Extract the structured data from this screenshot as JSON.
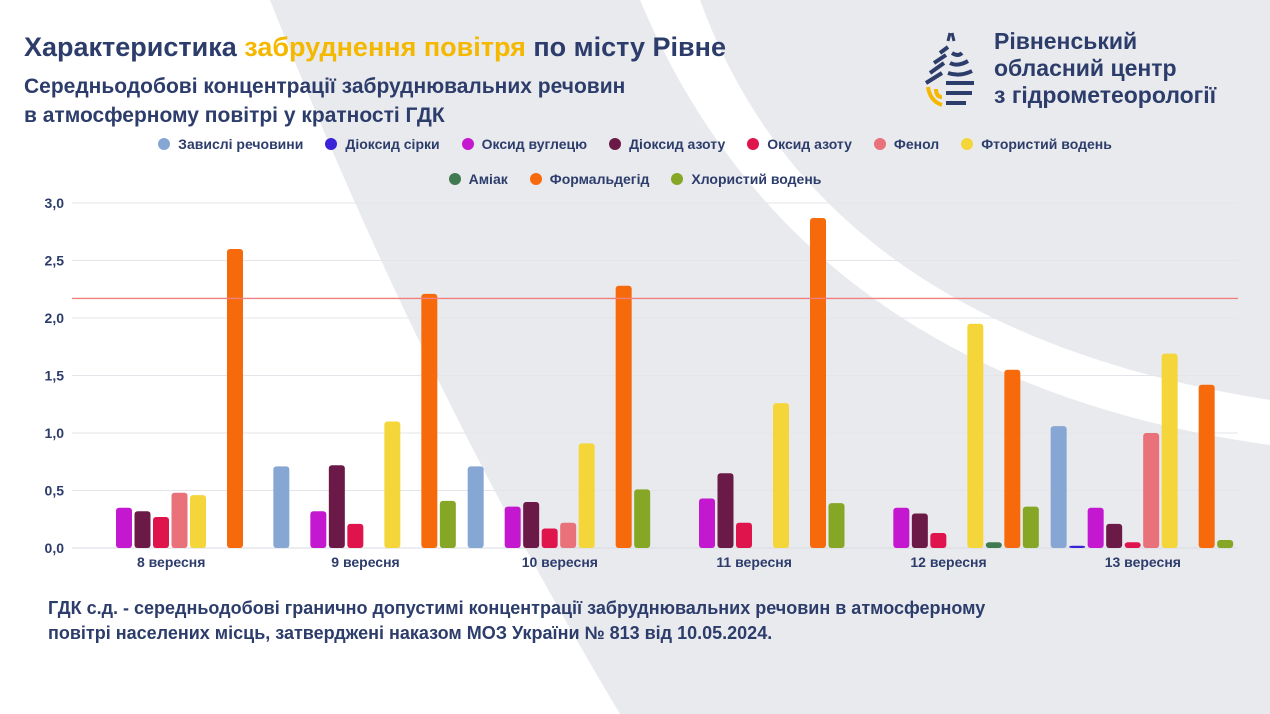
{
  "header": {
    "title_part1": "Характеристика ",
    "title_highlight": "забруднення повітря",
    "title_part2": " по місту Рівне",
    "subtitle_line1": "Середньодобові концентрації забруднювальних речовин",
    "subtitle_line2": "в атмосферному повітрі у кратності ГДК"
  },
  "logo": {
    "line1": "Рівненський",
    "line2": "обласний центр",
    "line3": "з гідрометеорології"
  },
  "footnote": {
    "line1": "ГДК с.д. - середньодобові гранично допустимі концентрації забруднювальних речовин в атмосферному",
    "line2": "повітрі населених місць, затверджені наказом МОЗ України № 813 від 10.05.2024."
  },
  "colors": {
    "title": "#2d3d6b",
    "highlight": "#f5b800",
    "threshold": "#f08080"
  },
  "chart_data": {
    "type": "bar",
    "title": "Середньодобові концентрації забруднювальних речовин в атмосферному повітрі у кратності ГДК",
    "xlabel": "",
    "ylabel": "",
    "ylim": [
      0,
      3.0
    ],
    "yticks": [
      "0,0",
      "0,5",
      "1,0",
      "1,5",
      "2,0",
      "2,5",
      "3,0"
    ],
    "grid": true,
    "legend_position": "top-center",
    "threshold_line": 2.17,
    "categories": [
      "8 вересня",
      "9 вересня",
      "10 вересня",
      "11 вересня",
      "12 вересня",
      "13 вересня"
    ],
    "series": [
      {
        "name": "Завислі речовини",
        "color": "#86a7d4",
        "values": [
          null,
          0.71,
          0.71,
          null,
          null,
          1.06
        ]
      },
      {
        "name": "Діоксид сірки",
        "color": "#3b23d6",
        "values": [
          null,
          null,
          null,
          null,
          null,
          0.02
        ]
      },
      {
        "name": "Оксид вуглецю",
        "color": "#c318d0",
        "values": [
          0.35,
          0.32,
          0.36,
          0.43,
          0.35,
          0.35
        ]
      },
      {
        "name": "Діоксид азоту",
        "color": "#6b1a47",
        "values": [
          0.32,
          0.72,
          0.4,
          0.65,
          0.3,
          0.21
        ]
      },
      {
        "name": "Оксид азоту",
        "color": "#e0144c",
        "values": [
          0.27,
          0.21,
          0.17,
          0.22,
          0.13,
          0.05
        ]
      },
      {
        "name": "Фенол",
        "color": "#e8717a",
        "values": [
          0.48,
          null,
          0.22,
          null,
          null,
          1.0
        ]
      },
      {
        "name": "Фтористий водень",
        "color": "#f5d63a",
        "values": [
          0.46,
          1.1,
          0.91,
          1.26,
          1.95,
          1.69
        ]
      },
      {
        "name": "Аміак",
        "color": "#3f7a50",
        "values": [
          null,
          null,
          null,
          null,
          0.05,
          null
        ]
      },
      {
        "name": "Формальдегід",
        "color": "#f76a0c",
        "values": [
          2.6,
          2.21,
          2.28,
          2.87,
          1.55,
          1.42
        ]
      },
      {
        "name": "Хлористий водень",
        "color": "#86a626",
        "values": [
          null,
          0.41,
          0.51,
          0.39,
          0.36,
          0.07
        ]
      }
    ]
  }
}
